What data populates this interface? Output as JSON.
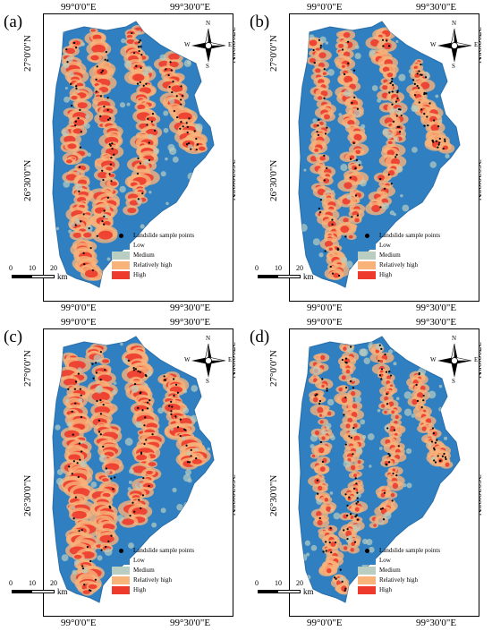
{
  "panels": [
    {
      "label": "(a)"
    },
    {
      "label": "(b)"
    },
    {
      "label": "(c)"
    },
    {
      "label": "(d)"
    }
  ],
  "axes": {
    "lon_left": "99°0'0\"E",
    "lon_right": "99°30'0\"E",
    "lat_top": "27°0'0\"N",
    "lat_bottom": "26°30'0\"N"
  },
  "compass": {
    "n": "N",
    "s": "S",
    "e": "E",
    "w": "W"
  },
  "legend": {
    "points_label": "Landslide sample points",
    "classes": [
      {
        "name": "Low",
        "color": "#2f7fc1"
      },
      {
        "name": "Medium",
        "color": "#b9cdc0"
      },
      {
        "name": "Relatively high",
        "color": "#f7b37a"
      },
      {
        "name": "High",
        "color": "#ee3a2c"
      }
    ]
  },
  "scale_bar": {
    "ticks": [
      "0",
      "10",
      "20"
    ],
    "unit": "km"
  }
}
